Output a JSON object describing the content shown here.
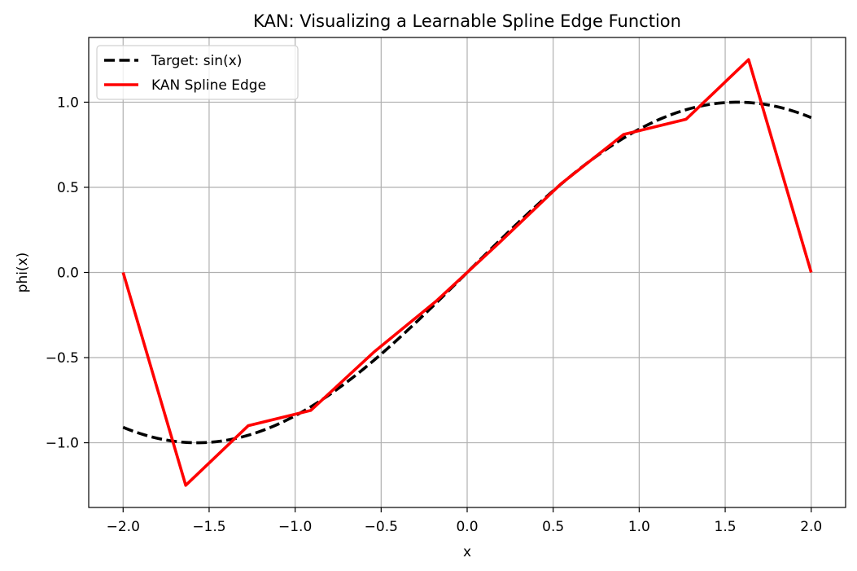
{
  "chart_data": {
    "type": "line",
    "title": "KAN: Visualizing a Learnable Spline Edge Function",
    "xlabel": "x",
    "ylabel": "phi(x)",
    "xlim": [
      -2.2,
      2.2
    ],
    "ylim": [
      -1.38,
      1.38
    ],
    "xticks": [
      -2.0,
      -1.5,
      -1.0,
      -0.5,
      0.0,
      0.5,
      1.0,
      1.5,
      2.0
    ],
    "xtick_labels": [
      "−2.0",
      "−1.5",
      "−1.0",
      "−0.5",
      "0.0",
      "0.5",
      "1.0",
      "1.5",
      "2.0"
    ],
    "yticks": [
      -1.0,
      -0.5,
      0.0,
      0.5,
      1.0
    ],
    "ytick_labels": [
      "−1.0",
      "−0.5",
      "0.0",
      "0.5",
      "1.0"
    ],
    "grid": true,
    "legend_position": "upper-left",
    "series": [
      {
        "name": "Target: sin(x)",
        "color": "#000000",
        "style": "dashed",
        "function": "sin",
        "x_range": [
          -2.0,
          2.0
        ]
      },
      {
        "name": "KAN Spline Edge",
        "color": "#ff0000",
        "style": "solid",
        "x": [
          -2.0,
          -1.636,
          -1.273,
          -0.909,
          -0.545,
          -0.182,
          0.182,
          0.545,
          0.909,
          1.273,
          1.636,
          2.0
        ],
        "y": [
          0.0,
          -1.25,
          -0.9,
          -0.81,
          -0.47,
          -0.17,
          0.17,
          0.52,
          0.81,
          0.9,
          1.25,
          0.0
        ]
      }
    ]
  }
}
